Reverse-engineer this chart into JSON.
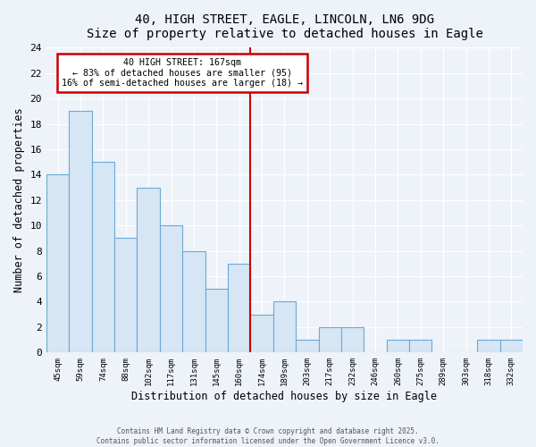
{
  "title": "40, HIGH STREET, EAGLE, LINCOLN, LN6 9DG",
  "subtitle": "Size of property relative to detached houses in Eagle",
  "xlabel": "Distribution of detached houses by size in Eagle",
  "ylabel": "Number of detached properties",
  "bar_labels": [
    "45sqm",
    "59sqm",
    "74sqm",
    "88sqm",
    "102sqm",
    "117sqm",
    "131sqm",
    "145sqm",
    "160sqm",
    "174sqm",
    "189sqm",
    "203sqm",
    "217sqm",
    "232sqm",
    "246sqm",
    "260sqm",
    "275sqm",
    "289sqm",
    "303sqm",
    "318sqm",
    "332sqm"
  ],
  "bar_values": [
    14,
    19,
    15,
    9,
    13,
    10,
    8,
    5,
    7,
    3,
    4,
    1,
    2,
    2,
    0,
    1,
    1,
    0,
    0,
    1,
    1
  ],
  "bar_color": "#d6e6f5",
  "bar_edge_color": "#6aaad4",
  "property_line_x": 8.5,
  "annotation_title": "40 HIGH STREET: 167sqm",
  "annotation_line1": "← 83% of detached houses are smaller (95)",
  "annotation_line2": "16% of semi-detached houses are larger (18) →",
  "annotation_box_color": "#ffffff",
  "annotation_box_edge": "#cc0000",
  "line_color": "#cc0000",
  "ylim": [
    0,
    24
  ],
  "background_color": "#eef2f9",
  "grid_color": "#ffffff",
  "footer1": "Contains HM Land Registry data © Crown copyright and database right 2025.",
  "footer2": "Contains public sector information licensed under the Open Government Licence v3.0."
}
